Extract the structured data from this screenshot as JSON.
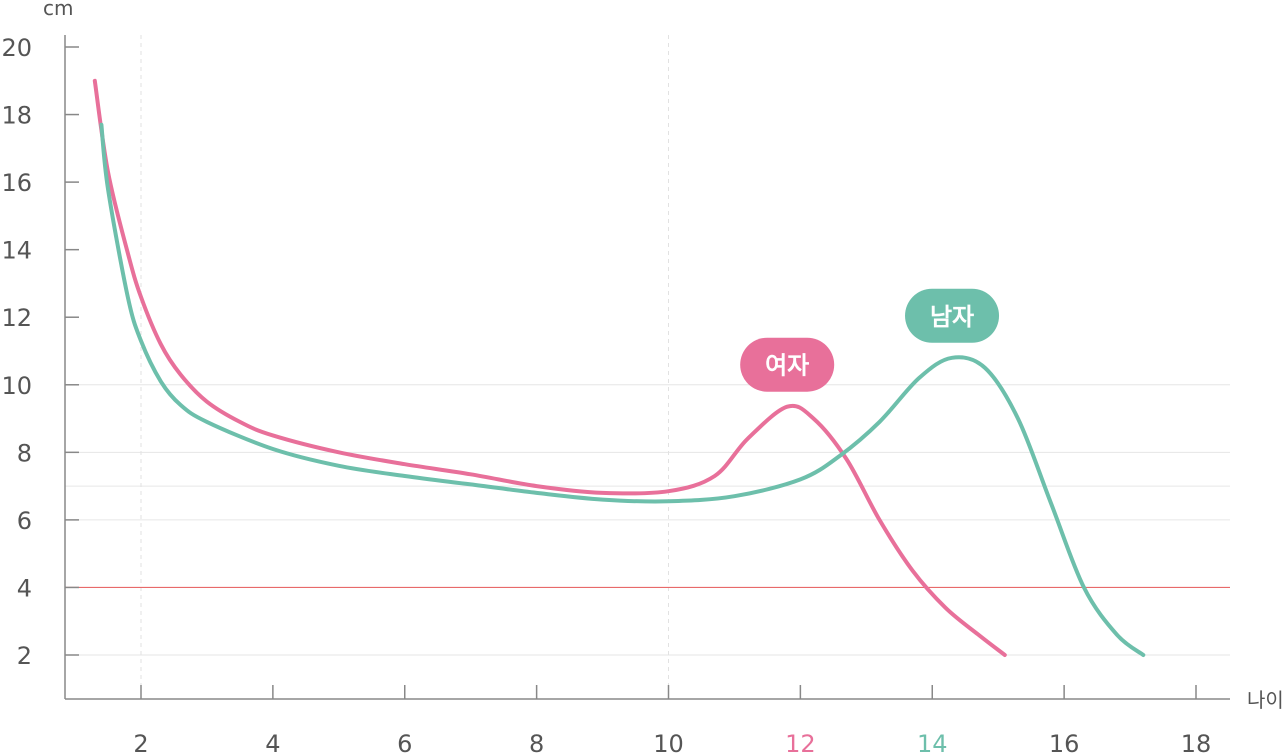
{
  "chart_data": {
    "type": "line",
    "y_unit": "cm",
    "x_unit": "나이",
    "xlim": [
      0.2,
      18.5
    ],
    "ylim": [
      0.8,
      20.5
    ],
    "x_ticks": [
      2,
      4,
      6,
      8,
      10,
      12,
      14,
      16,
      18
    ],
    "y_ticks": [
      2,
      4,
      6,
      8,
      10,
      12,
      14,
      16,
      18,
      20
    ],
    "highlight_ticks": [
      {
        "x": 12,
        "color": "#e8709a"
      },
      {
        "x": 14,
        "color": "#6dbfab"
      }
    ],
    "reference_line": {
      "y": 4,
      "color": "#e86a6a"
    },
    "series": [
      {
        "name": "여자",
        "color": "#e8709a",
        "points": [
          [
            1.3,
            19.0
          ],
          [
            1.5,
            16.3
          ],
          [
            1.8,
            13.9
          ],
          [
            2.0,
            12.6
          ],
          [
            2.3,
            11.2
          ],
          [
            2.6,
            10.3
          ],
          [
            3.0,
            9.5
          ],
          [
            3.5,
            8.9
          ],
          [
            4.0,
            8.5
          ],
          [
            5.0,
            8.0
          ],
          [
            6.0,
            7.65
          ],
          [
            7.0,
            7.35
          ],
          [
            8.0,
            7.0
          ],
          [
            9.0,
            6.8
          ],
          [
            10.0,
            6.85
          ],
          [
            10.7,
            7.3
          ],
          [
            11.2,
            8.4
          ],
          [
            11.8,
            9.35
          ],
          [
            12.2,
            9.0
          ],
          [
            12.7,
            7.8
          ],
          [
            13.2,
            6.0
          ],
          [
            13.7,
            4.5
          ],
          [
            14.2,
            3.4
          ],
          [
            14.7,
            2.6
          ],
          [
            15.1,
            2.0
          ]
        ]
      },
      {
        "name": "남자",
        "color": "#6dbfab",
        "points": [
          [
            1.4,
            17.7
          ],
          [
            1.5,
            15.8
          ],
          [
            1.8,
            12.6
          ],
          [
            2.0,
            11.3
          ],
          [
            2.3,
            10.1
          ],
          [
            2.6,
            9.4
          ],
          [
            3.0,
            8.9
          ],
          [
            4.0,
            8.1
          ],
          [
            5.0,
            7.6
          ],
          [
            6.0,
            7.3
          ],
          [
            7.0,
            7.05
          ],
          [
            8.0,
            6.8
          ],
          [
            9.0,
            6.6
          ],
          [
            10.0,
            6.55
          ],
          [
            11.0,
            6.7
          ],
          [
            12.0,
            7.2
          ],
          [
            12.6,
            7.9
          ],
          [
            13.2,
            8.9
          ],
          [
            13.8,
            10.2
          ],
          [
            14.3,
            10.8
          ],
          [
            14.8,
            10.5
          ],
          [
            15.3,
            9.0
          ],
          [
            15.8,
            6.5
          ],
          [
            16.3,
            4.0
          ],
          [
            16.8,
            2.6
          ],
          [
            17.2,
            2.0
          ]
        ]
      }
    ]
  }
}
